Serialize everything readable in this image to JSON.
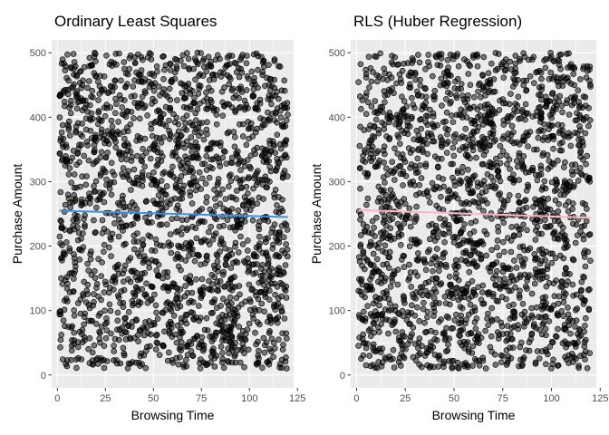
{
  "chart_data": [
    {
      "type": "scatter",
      "title": "Ordinary Least Squares",
      "xlabel": "Browsing Time",
      "ylabel": "Purchase Amount",
      "xlim": [
        -3,
        123
      ],
      "ylim": [
        -20,
        520
      ],
      "x_ticks": [
        "0",
        "25",
        "50",
        "75",
        "100",
        "125"
      ],
      "y_ticks": [
        "0",
        "100",
        "200",
        "300",
        "400",
        "500"
      ],
      "grid": true,
      "point_color": "#000000",
      "point_opacity": 0.5,
      "n_points_visual_estimate": 2000,
      "point_range": {
        "x": [
          1,
          120
        ],
        "y": [
          10,
          500
        ]
      },
      "fit_line": {
        "method": "OLS",
        "x": [
          1,
          120
        ],
        "y": [
          255,
          245
        ],
        "color": "#3d8fe0"
      }
    },
    {
      "type": "scatter",
      "title": "RLS (Huber Regression)",
      "xlabel": "Browsing Time",
      "ylabel": "Purchase Amount",
      "xlim": [
        -3,
        123
      ],
      "ylim": [
        -20,
        520
      ],
      "x_ticks": [
        "0",
        "25",
        "50",
        "75",
        "100",
        "125"
      ],
      "y_ticks": [
        "0",
        "100",
        "200",
        "300",
        "400",
        "500"
      ],
      "grid": true,
      "point_color": "#000000",
      "point_opacity": 0.5,
      "n_points_visual_estimate": 2000,
      "point_range": {
        "x": [
          1,
          120
        ],
        "y": [
          10,
          500
        ]
      },
      "fit_line": {
        "method": "Huber",
        "x": [
          1,
          120
        ],
        "y": [
          256,
          244
        ],
        "color": "#ffb6c1"
      }
    }
  ]
}
